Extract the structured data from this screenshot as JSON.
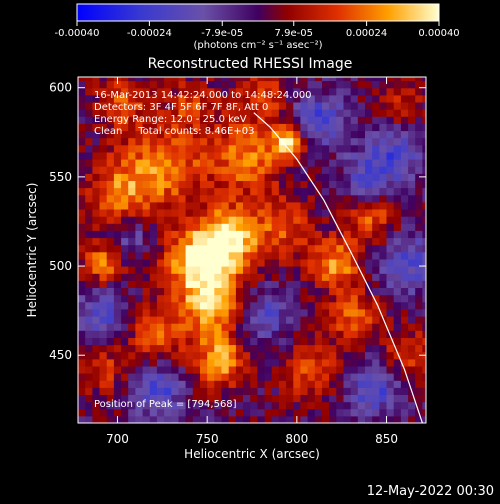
{
  "chart_data": {
    "type": "heatmap",
    "title": "Reconstructed RHESSI Image",
    "xlabel": "Heliocentric X (arcsec)",
    "ylabel": "Heliocentric Y (arcsec)",
    "xlim": [
      678,
      872
    ],
    "ylim": [
      412,
      606
    ],
    "x_ticks": [
      700,
      750,
      800,
      850
    ],
    "y_ticks": [
      450,
      500,
      550,
      600
    ],
    "colorbar": {
      "tick_labels": [
        "-0.00040",
        "-0.00024",
        "-7.9e-05",
        "7.9e-05",
        "0.00024",
        "0.00040"
      ],
      "tick_values": [
        -0.0004,
        -0.00024,
        -7.9e-05,
        7.9e-05,
        0.00024,
        0.0004
      ],
      "range": [
        -0.0004,
        0.0004
      ],
      "units": "(photons cm⁻² s⁻¹ asec⁻²)"
    },
    "annotations": [
      "16-Mar-2013 14:42:24.000 to 14:48:24.000",
      "Detectors: 3F 4F 5F 6F 7F 8F, Att 0",
      "Energy Range: 12.0 - 25.0 keV",
      "Clean     Total counts: 8.46E+03"
    ],
    "peak_label": "Position of Peak = [794,568]",
    "peak": {
      "x": 794,
      "y": 568
    },
    "limb_curve": {
      "x": [
        776,
        785,
        800,
        815,
        830,
        845,
        860,
        870
      ],
      "y": [
        586,
        578,
        560,
        537,
        508,
        478,
        442,
        412
      ]
    },
    "grid": false,
    "legend": "none"
  },
  "footer": {
    "date": "12-May-2022 00:30"
  }
}
